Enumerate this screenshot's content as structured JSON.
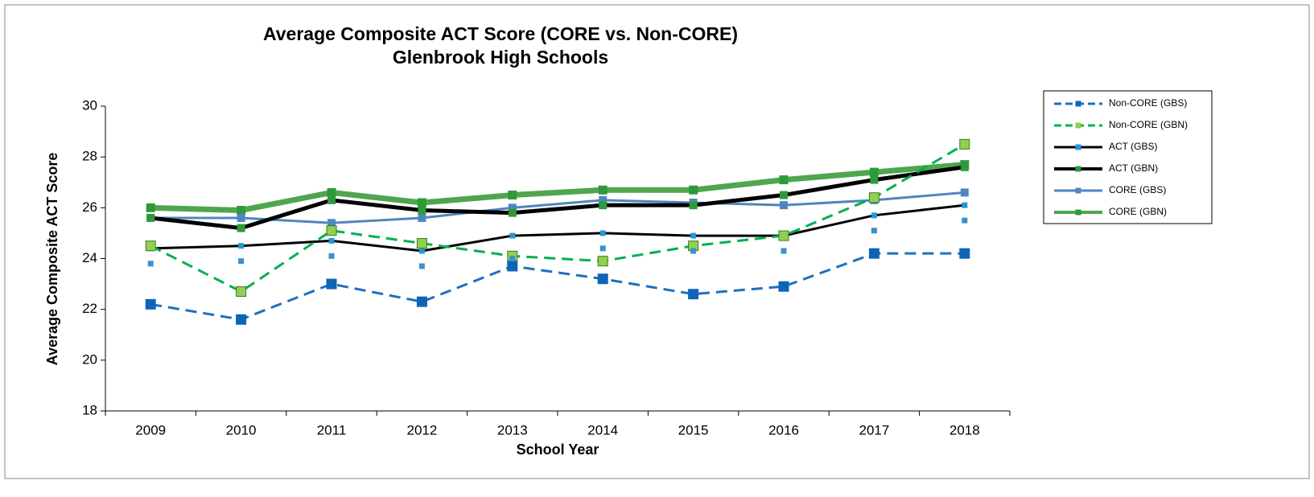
{
  "chart_data": {
    "type": "line",
    "title": [
      "Average Composite ACT Score (CORE vs. Non-CORE)",
      "Glenbrook High Schools"
    ],
    "xlabel": "School Year",
    "ylabel": "Average Composite ACT Score",
    "categories": [
      "2009",
      "2010",
      "2011",
      "2012",
      "2013",
      "2014",
      "2015",
      "2016",
      "2017",
      "2018"
    ],
    "ylim": [
      18,
      30
    ],
    "yticks": [
      18,
      20,
      22,
      24,
      26,
      28,
      30
    ],
    "legend": "right",
    "series": [
      {
        "name": "CORE (GBN)",
        "color": "#4ea64e",
        "marker_color": "#2e9a3a",
        "width": 7,
        "dashed": false,
        "marker_size": 11,
        "values": [
          26.0,
          25.9,
          26.6,
          26.2,
          26.5,
          26.7,
          26.7,
          27.1,
          27.4,
          27.7
        ]
      },
      {
        "name": "CORE (GBS)",
        "color": "#4f86c0",
        "marker_color": "#4f86c0",
        "width": 3,
        "dashed": false,
        "marker_size": 10,
        "values": [
          25.6,
          25.6,
          25.4,
          25.6,
          26.0,
          26.3,
          26.2,
          26.1,
          26.3,
          26.6
        ]
      },
      {
        "name": "ACT (GBN)",
        "color": "#000000",
        "marker_color": "#2e9a3a",
        "width": 5,
        "dashed": false,
        "marker_size": 10,
        "values": [
          25.6,
          25.2,
          26.3,
          25.9,
          25.8,
          26.1,
          26.1,
          26.5,
          27.1,
          27.6
        ]
      },
      {
        "name": "ACT (GBS)",
        "color": "#000000",
        "marker_color": "#1f9ad8",
        "width": 3,
        "dashed": false,
        "marker_size": 7,
        "values": [
          24.4,
          24.5,
          24.7,
          24.3,
          24.9,
          25.0,
          24.9,
          24.9,
          25.7,
          26.1
        ]
      },
      {
        "name": "Non-CORE (GBN)",
        "color": "#00b050",
        "marker_color": "#92d050",
        "width": 3,
        "dashed": true,
        "marker_size": 12,
        "values": [
          24.5,
          22.7,
          25.1,
          24.6,
          24.1,
          23.9,
          24.5,
          24.9,
          26.4,
          28.5
        ]
      },
      {
        "name": "Non-CORE (GBS)",
        "color": "#1f6fc0",
        "marker_color": "#0f64b8",
        "width": 3,
        "dashed": true,
        "marker_size": 12,
        "values": [
          22.2,
          21.6,
          23.0,
          22.3,
          23.7,
          23.2,
          22.6,
          22.9,
          24.2,
          24.2
        ]
      },
      {
        "color": "#3a90d0",
        "marker_color": "#3a90d0",
        "width": 0,
        "dashed": false,
        "marker_size": 7,
        "values": [
          23.8,
          23.9,
          24.1,
          23.7,
          24.0,
          24.4,
          24.3,
          24.3,
          25.1,
          25.5
        ]
      }
    ]
  }
}
